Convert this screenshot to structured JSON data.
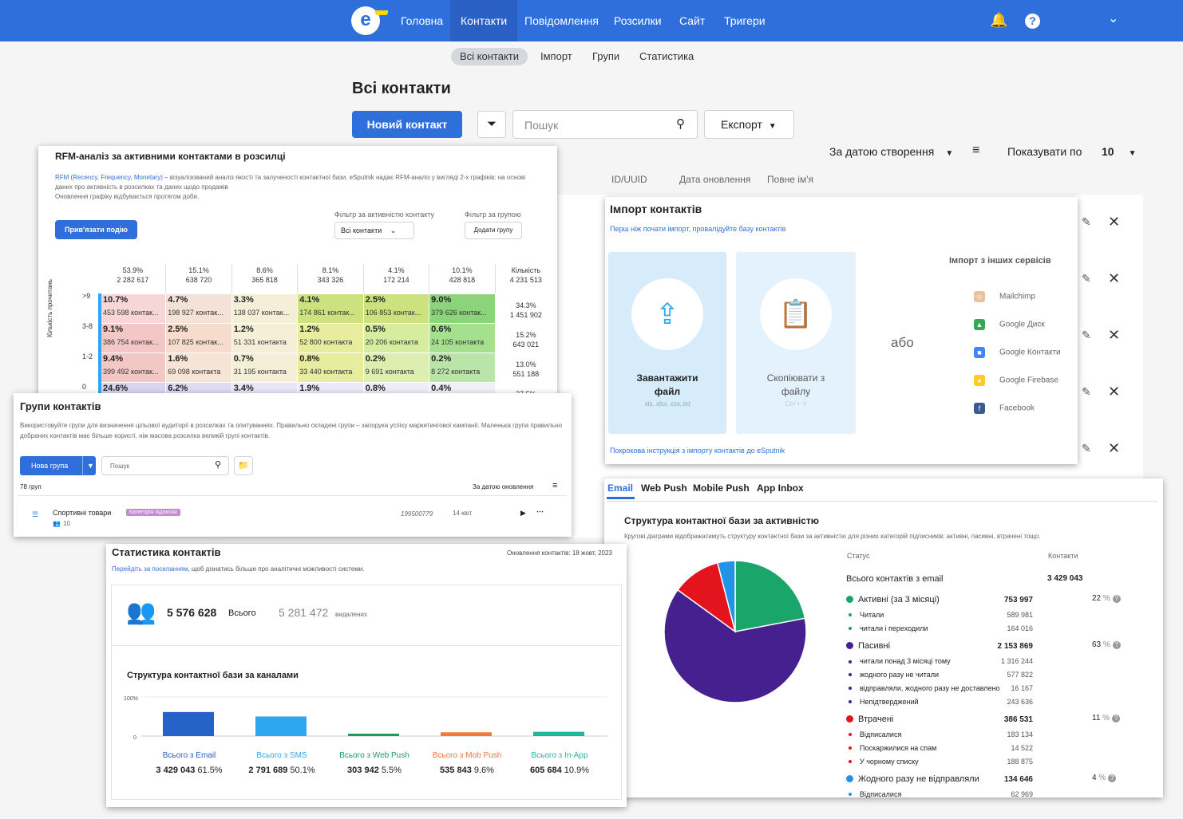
{
  "nav": {
    "items": [
      "Головна",
      "Контакти",
      "Повідомлення",
      "Розсилки",
      "Сайт",
      "Тригери"
    ],
    "logo": "e"
  },
  "subnav": [
    "Всі контакти",
    "Імпорт",
    "Групи",
    "Статистика"
  ],
  "page": {
    "title": "Всі контакти",
    "new_contact": "Новий контакт",
    "search_placeholder": "Пошук",
    "export": "Експорт",
    "sort": "За датою створення",
    "show_by": "Показувати по",
    "show_count": "10",
    "columns": [
      "ID/UUID",
      "Дата оновлення",
      "Повне ім'я"
    ]
  },
  "rfm": {
    "title": "RFM-аналіз за активними контактами в розсилці",
    "desc_link": "RFM (Recency, Frequency, Monetary)",
    "desc": " – візуалізований аналіз якості та залученості контактної бази. eSputnik надає RFM-аналіз у вигляді 2-х графіків: на основі даних про активність в розсилках та даних щодо продажів",
    "desc2": "Оновлення графіку відбувається протягом доби.",
    "bind_button": "Прив'язати подію",
    "filter_activity_label": "Фільтр за активністю контакту",
    "filter_activity_value": "Всі контакти",
    "filter_group_label": "Фільтр за групою",
    "add_group": "Додати групу",
    "y_axis": "Кількість прочитань",
    "count_label": "Кількість",
    "total": "4 231 513",
    "headers": [
      [
        "53.9%",
        "2 282 617"
      ],
      [
        "15.1%",
        "638 720"
      ],
      [
        "8.6%",
        "365 818"
      ],
      [
        "8.1%",
        "343 326"
      ],
      [
        "4.1%",
        "172 214"
      ],
      [
        "10.1%",
        "428 818"
      ]
    ],
    "rows": [
      {
        "label": ">9",
        "side": [
          "34.3%",
          "1 451 902"
        ],
        "cells": [
          [
            "10.7%",
            "453 598 контак..."
          ],
          [
            "4.7%",
            "198 927 контак..."
          ],
          [
            "3.3%",
            "138 037 контак..."
          ],
          [
            "4.1%",
            "174 861 контак..."
          ],
          [
            "2.5%",
            "106 853 контак..."
          ],
          [
            "9.0%",
            "379 626 контак..."
          ]
        ]
      },
      {
        "label": "3-8",
        "side": [
          "15.2%",
          "643 021"
        ],
        "cells": [
          [
            "9.1%",
            "386 754 контак..."
          ],
          [
            "2.5%",
            "107 825 контак..."
          ],
          [
            "1.2%",
            "51 331 контакта"
          ],
          [
            "1.2%",
            "52 800 контакта"
          ],
          [
            "0.5%",
            "20 206 контакта"
          ],
          [
            "0.6%",
            "24 105 контакта"
          ]
        ]
      },
      {
        "label": "1-2",
        "side": [
          "13.0%",
          "551 188"
        ],
        "cells": [
          [
            "9.4%",
            "399 492 контак..."
          ],
          [
            "1.6%",
            "69 098 контакта"
          ],
          [
            "0.7%",
            "31 195 контакта"
          ],
          [
            "0.8%",
            "33 440 контакта"
          ],
          [
            "0.2%",
            "9 691 контакта"
          ],
          [
            "0.2%",
            "8 272 контакта"
          ]
        ]
      },
      {
        "label": "0",
        "side": [
          "37.5%",
          ""
        ],
        "cells": [
          [
            "24.6%",
            ""
          ],
          [
            "6.2%",
            ""
          ],
          [
            "3.4%",
            ""
          ],
          [
            "1.9%",
            ""
          ],
          [
            "0.8%",
            ""
          ],
          [
            "0.4%",
            ""
          ]
        ]
      }
    ]
  },
  "groups": {
    "title": "Групи контактів",
    "desc": "Використовуйте групи для визначення цільової аудиторії в розсилках та опитуваннях. Правильно складені групи – запорука успіху маркетингової кампанії. Маленька група правильно добраних контактів має більше користі, ніж масова розсилка великій групі контактів.",
    "new_group": "Нова група",
    "search_placeholder": "Пошук",
    "count": "78 груп",
    "sort": "За датою оновлення",
    "row": {
      "name": "Спортивні товари",
      "tag": "Категорія підписки",
      "members": "10",
      "id": "199500779",
      "date": "14 квіт"
    }
  },
  "import": {
    "title": "Імпорт контактів",
    "subtitle": "Перш ніж почати імпорт, провалідуйте базу контактів",
    "upload": "Завантажити файл",
    "upload_formats": "xls, xlsx, csv, txt",
    "copy": "Скопіювати з файлу",
    "copy_hint": "Ctrl + V",
    "or": "або",
    "other_title": "Імпорт з інших сервісів",
    "services": [
      "Mailchimp",
      "Google Диск",
      "Google Контакти",
      "Google Firebase",
      "Facebook"
    ],
    "guide": "Покрокова інструкція з імпорту контактів до eSputnik"
  },
  "stats": {
    "title": "Статистика контактів",
    "updated": "Оновлення контактів: 18 жовт, 2023",
    "link": "Перейдіть за посиланням",
    "link_rest": ", щоб дізнатись більше про аналітичні можливості системи.",
    "total": "5 576 628",
    "total_label": "Всього",
    "deleted": "5 281 472",
    "deleted_label": "видалених",
    "channels_title": "Структура контактної бази за каналами",
    "axis_top": "100%",
    "axis_bottom": "0"
  },
  "chart_data": [
    {
      "type": "bar",
      "title": "Структура контактної бази за каналами",
      "categories": [
        "Всього з Email",
        "Всього з SMS",
        "Всього з Web Push",
        "Всього з Mob Push",
        "Всього з In-App"
      ],
      "values": [
        61.5,
        50.1,
        5.5,
        9.6,
        10.9
      ],
      "counts": [
        "3 429 043",
        "2 791 689",
        "303 942",
        "535 843",
        "605 684"
      ],
      "labels": [
        "61.5%",
        "50.1%",
        "5.5%",
        "9.6%",
        "10.9%"
      ],
      "colors": [
        "#2563c9",
        "#2ea7f0",
        "#1a9c5e",
        "#f07a3a",
        "#1fb89a"
      ],
      "ylim": [
        0,
        100
      ]
    },
    {
      "type": "pie",
      "title": "Структура контактної бази за активністю",
      "slices": [
        {
          "name": "Активні (за 3 місяці)",
          "value": 22,
          "color": "#1aa56a"
        },
        {
          "name": "Пасивні",
          "value": 63,
          "color": "#47208f"
        },
        {
          "name": "Втрачені",
          "value": 11,
          "color": "#e4141f"
        },
        {
          "name": "Жодного разу не відправляли",
          "value": 4,
          "color": "#2393e8"
        }
      ]
    }
  ],
  "activity": {
    "tabs": [
      "Email",
      "Web Push",
      "Mobile Push",
      "App Inbox"
    ],
    "title": "Структура контактної бази за активністю",
    "desc": "Кругові діаграми відображатимуть структуру контактної бази за активністю для різних категорій підписників: активні, пасивні, втрачені тощо.",
    "col_status": "Статус",
    "col_contacts": "Контакти",
    "total_label": "Всього контактів з email",
    "total": "3 429 043",
    "rows": [
      {
        "kind": "main",
        "label": "Активні (за 3 місяці)",
        "value": "753 997",
        "pct": "22",
        "color": "#1aa56a"
      },
      {
        "kind": "sub",
        "label": "Читали",
        "value": "589 981",
        "color": "#1aa56a"
      },
      {
        "kind": "sub",
        "label": "читали і переходили",
        "value": "164 016",
        "color": "#1aa56a"
      },
      {
        "kind": "main",
        "label": "Пасивні",
        "value": "2 153 869",
        "pct": "63",
        "color": "#47208f"
      },
      {
        "kind": "sub",
        "label": "читали понад 3 місяці тому",
        "value": "1 316 244",
        "color": "#47208f"
      },
      {
        "kind": "sub",
        "label": "жодного разу не читали",
        "value": "577 822",
        "color": "#47208f"
      },
      {
        "kind": "sub",
        "label": "відправляли, жодного разу не доставлено",
        "value": "16 167",
        "color": "#47208f"
      },
      {
        "kind": "sub",
        "label": "Непідтверджений",
        "value": "243 636",
        "color": "#47208f"
      },
      {
        "kind": "main",
        "label": "Втрачені",
        "value": "386 531",
        "pct": "11",
        "color": "#e4141f"
      },
      {
        "kind": "sub",
        "label": "Відписалися",
        "value": "183 134",
        "color": "#e4141f"
      },
      {
        "kind": "sub",
        "label": "Поскаржилися на спам",
        "value": "14 522",
        "color": "#e4141f"
      },
      {
        "kind": "sub",
        "label": "У чорному списку",
        "value": "188 875",
        "color": "#e4141f"
      },
      {
        "kind": "main",
        "label": "Жодного разу не відправляли",
        "value": "134 646",
        "pct": "4",
        "color": "#2393e8"
      },
      {
        "kind": "sub",
        "label": "Відписалися",
        "value": "62 969",
        "color": "#2393e8"
      }
    ]
  }
}
